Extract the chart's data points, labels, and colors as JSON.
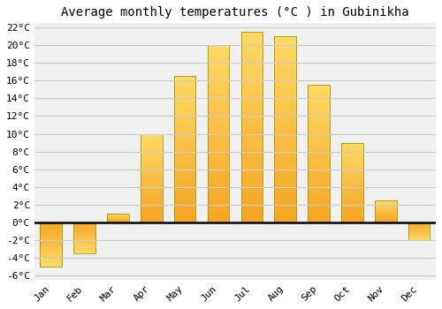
{
  "title": "Average monthly temperatures (°C ) in Gubinikha",
  "months": [
    "Jan",
    "Feb",
    "Mar",
    "Apr",
    "May",
    "Jun",
    "Jul",
    "Aug",
    "Sep",
    "Oct",
    "Nov",
    "Dec"
  ],
  "temperatures": [
    -5,
    -3.5,
    1,
    10,
    16.5,
    20,
    21.5,
    21,
    15.5,
    9,
    2.5,
    -2
  ],
  "bar_color_bottom": "#F5A623",
  "bar_color_top": "#FFD966",
  "bar_edge_color": "#999900",
  "ylim_min": -6,
  "ylim_max": 22,
  "ytick_step": 2,
  "grid_color": "#cccccc",
  "plot_bg_color": "#f0f0f0",
  "fig_bg_color": "#ffffff",
  "title_fontsize": 10,
  "tick_fontsize": 8,
  "bar_width": 0.65
}
